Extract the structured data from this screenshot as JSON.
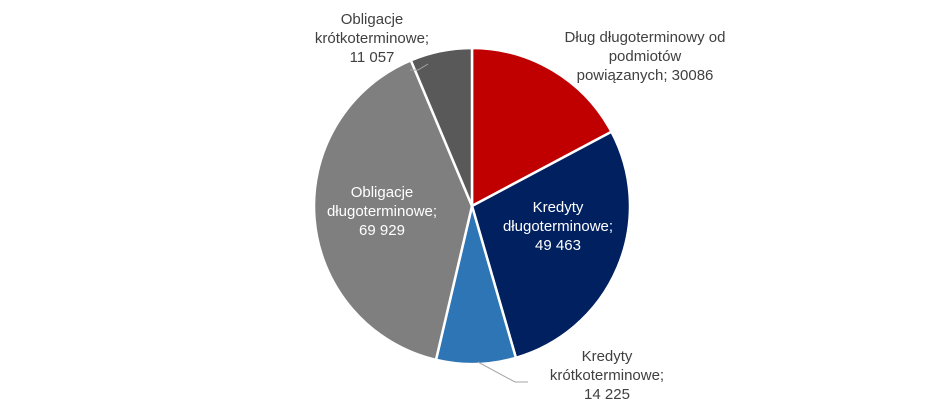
{
  "chart_data": {
    "type": "pie",
    "title": "",
    "start_angle_deg": 0,
    "direction": "clockwise",
    "slices": [
      {
        "name": "Dług długoterminowy od podmiotów powiązanych",
        "value": 30086,
        "color": "#c00000",
        "label_lines": [
          "Dług długoterminowy od",
          "podmiotów",
          "powiązanych; 30086"
        ]
      },
      {
        "name": "Kredyty długoterminowe",
        "value": 49463,
        "color": "#002060",
        "label_lines": [
          "Kredyty",
          "długoterminowe;",
          "49 463"
        ]
      },
      {
        "name": "Kredyty krótkoterminowe",
        "value": 14225,
        "color": "#2e75b6",
        "label_lines": [
          "Kredyty",
          "krótkoterminowe;",
          "14 225"
        ]
      },
      {
        "name": "Obligacje długoterminowe",
        "value": 69929,
        "color": "#7f7f7f",
        "label_lines": [
          "Obligacje",
          "długoterminowe;",
          "69 929"
        ]
      },
      {
        "name": "Obligacje krótkoterminowe",
        "value": 11057,
        "color": "#595959",
        "label_lines": [
          "Obligacje",
          "krótkoterminowe;",
          "11 057"
        ]
      }
    ]
  }
}
